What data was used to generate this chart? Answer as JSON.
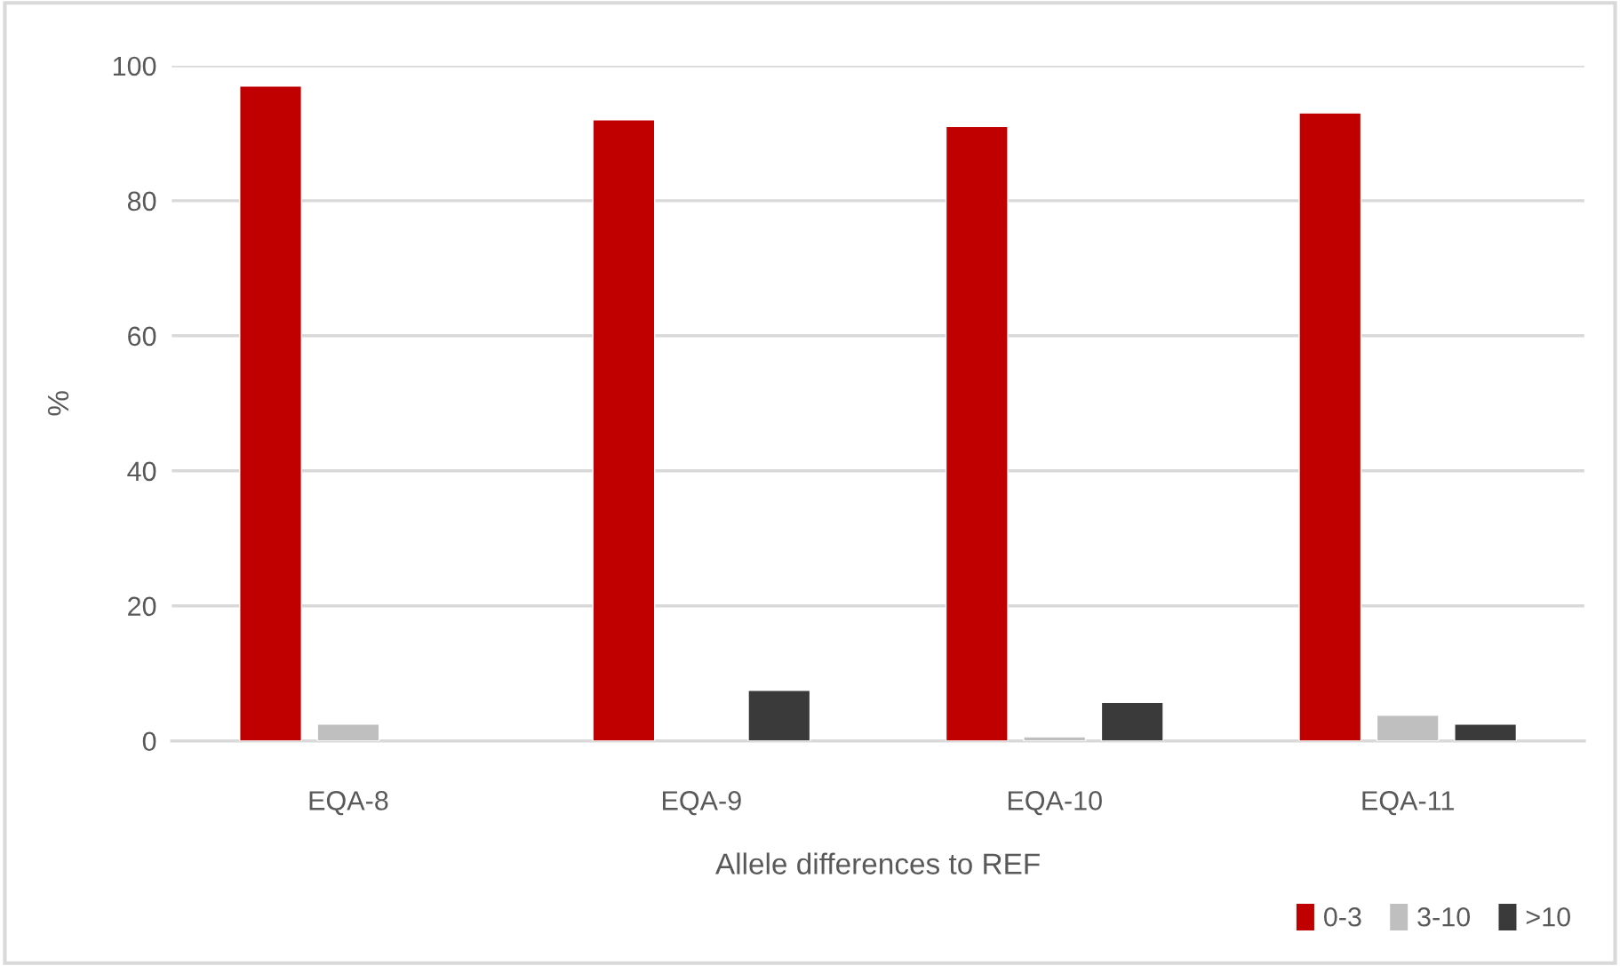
{
  "chart_data": {
    "type": "bar",
    "xlabel": "Allele differences to REF",
    "ylabel": "%",
    "categories": [
      "EQA-8",
      "EQA-9",
      "EQA-10",
      "EQA-11"
    ],
    "series": [
      {
        "name": "0-3",
        "color": "#c00000",
        "values": [
          97,
          92,
          91,
          93
        ]
      },
      {
        "name": "3-10",
        "color": "#bfbfbf",
        "values": [
          2.5,
          null,
          0.6,
          3.8
        ]
      },
      {
        "name": ">10",
        "color": "#3a3a3a",
        "values": [
          null,
          7.5,
          5.7,
          2.5
        ]
      }
    ],
    "ylim": [
      0,
      100
    ],
    "yticks": [
      0,
      20,
      40,
      60,
      80,
      100
    ],
    "grid": "y",
    "legend": "bottom right"
  }
}
